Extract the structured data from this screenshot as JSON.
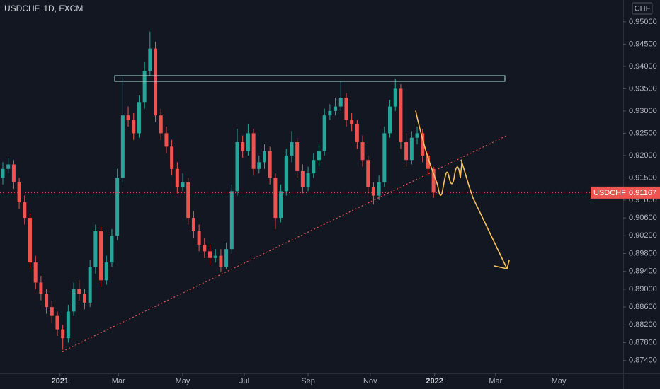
{
  "chart_data": {
    "type": "candlestick",
    "title": "USDCHF, 1D, FXCM",
    "currency": "CHF",
    "symbol_label": "USDCHF",
    "up_color": "#26a69a",
    "down_color": "#ef5350",
    "grid": false,
    "ylim": [
      0.8711,
      0.9549
    ],
    "yticks": [
      {
        "value": 0.95,
        "label": "0.95000"
      },
      {
        "value": 0.945,
        "label": "0.94500"
      },
      {
        "value": 0.94,
        "label": "0.94000"
      },
      {
        "value": 0.935,
        "label": "0.93500"
      },
      {
        "value": 0.93,
        "label": "0.93000"
      },
      {
        "value": 0.925,
        "label": "0.92500"
      },
      {
        "value": 0.92,
        "label": "0.92000"
      },
      {
        "value": 0.915,
        "label": "0.91500"
      },
      {
        "value": 0.91,
        "label": "0.91000"
      },
      {
        "value": 0.906,
        "label": "0.90600"
      },
      {
        "value": 0.902,
        "label": "0.90200"
      },
      {
        "value": 0.898,
        "label": "0.89800"
      },
      {
        "value": 0.894,
        "label": "0.89400"
      },
      {
        "value": 0.89,
        "label": "0.89000"
      },
      {
        "value": 0.886,
        "label": "0.88600"
      },
      {
        "value": 0.882,
        "label": "0.88200"
      },
      {
        "value": 0.878,
        "label": "0.87800"
      },
      {
        "value": 0.874,
        "label": "0.87400"
      }
    ],
    "xlim": [
      -0.52,
      113.8
    ],
    "xticks": [
      {
        "value": 10.5,
        "label": "2021"
      },
      {
        "value": 21.2,
        "label": "Mar"
      },
      {
        "value": 33.0,
        "label": "May"
      },
      {
        "value": 44.3,
        "label": "Jul"
      },
      {
        "value": 56.0,
        "label": "Sep"
      },
      {
        "value": 67.4,
        "label": "Nov"
      },
      {
        "value": 79.2,
        "label": "2022"
      },
      {
        "value": 90.4,
        "label": "Mar"
      },
      {
        "value": 102.0,
        "label": "May"
      }
    ],
    "open": [
      0.915,
      0.917,
      0.918,
      0.914,
      0.9095,
      0.906,
      0.896,
      0.8915,
      0.889,
      0.886,
      0.884,
      0.881,
      0.879,
      0.885,
      0.89,
      0.889,
      0.887,
      0.895,
      0.903,
      0.892,
      0.896,
      0.902,
      0.915,
      0.929,
      0.928,
      0.925,
      0.932,
      0.939,
      0.944,
      0.929,
      0.925,
      0.922,
      0.917,
      0.913,
      0.914,
      0.906,
      0.903,
      0.9,
      0.8985,
      0.897,
      0.8975,
      0.895,
      0.899,
      0.912,
      0.923,
      0.921,
      0.925,
      0.917,
      0.9185,
      0.921,
      0.915,
      0.906,
      0.912,
      0.92,
      0.923,
      0.9165,
      0.913,
      0.916,
      0.919,
      0.921,
      0.929,
      0.93,
      0.931,
      0.933,
      0.928,
      0.927,
      0.923,
      0.919,
      0.913,
      0.911,
      0.914,
      0.925,
      0.931,
      0.935,
      0.923,
      0.919,
      0.924,
      0.925,
      0.92,
      0.917
    ],
    "high": [
      0.9185,
      0.9195,
      0.919,
      0.915,
      0.911,
      0.907,
      0.8975,
      0.893,
      0.89,
      0.8875,
      0.885,
      0.882,
      0.8865,
      0.8915,
      0.892,
      0.89,
      0.8965,
      0.9045,
      0.904,
      0.8975,
      0.9035,
      0.917,
      0.9375,
      0.931,
      0.9295,
      0.9335,
      0.941,
      0.9478,
      0.9455,
      0.9305,
      0.9265,
      0.9235,
      0.9185,
      0.916,
      0.915,
      0.9075,
      0.9045,
      0.9015,
      0.9,
      0.899,
      0.899,
      0.9005,
      0.9135,
      0.926,
      0.9245,
      0.927,
      0.926,
      0.92,
      0.9225,
      0.922,
      0.916,
      0.9135,
      0.9215,
      0.9255,
      0.924,
      0.918,
      0.9175,
      0.9205,
      0.9225,
      0.9305,
      0.9315,
      0.933,
      0.9367,
      0.934,
      0.9295,
      0.928,
      0.9245,
      0.92,
      0.914,
      0.9155,
      0.9265,
      0.9325,
      0.9372,
      0.936,
      0.925,
      0.9255,
      0.9265,
      0.926,
      0.921,
      0.9175
    ],
    "low": [
      0.9135,
      0.916,
      0.9125,
      0.908,
      0.9045,
      0.8945,
      0.89,
      0.8875,
      0.8845,
      0.8825,
      0.8795,
      0.8764,
      0.878,
      0.884,
      0.8875,
      0.8855,
      0.886,
      0.8935,
      0.8905,
      0.891,
      0.895,
      0.901,
      0.914,
      0.9265,
      0.9235,
      0.924,
      0.9305,
      0.938,
      0.9275,
      0.9235,
      0.9205,
      0.9155,
      0.9115,
      0.912,
      0.9045,
      0.9015,
      0.8985,
      0.897,
      0.8955,
      0.896,
      0.8938,
      0.8945,
      0.898,
      0.911,
      0.9195,
      0.92,
      0.9155,
      0.916,
      0.917,
      0.9135,
      0.9035,
      0.905,
      0.911,
      0.9185,
      0.915,
      0.9115,
      0.912,
      0.915,
      0.9175,
      0.92,
      0.928,
      0.929,
      0.93,
      0.9265,
      0.9255,
      0.9215,
      0.9175,
      0.9115,
      0.909,
      0.91,
      0.913,
      0.924,
      0.93,
      0.9215,
      0.9175,
      0.918,
      0.9225,
      0.9185,
      0.9155,
      0.9105
    ],
    "close": [
      0.917,
      0.918,
      0.914,
      0.9095,
      0.906,
      0.896,
      0.8915,
      0.889,
      0.886,
      0.884,
      0.881,
      0.879,
      0.885,
      0.89,
      0.889,
      0.887,
      0.895,
      0.903,
      0.892,
      0.896,
      0.902,
      0.915,
      0.929,
      0.928,
      0.925,
      0.932,
      0.939,
      0.944,
      0.929,
      0.925,
      0.922,
      0.917,
      0.913,
      0.914,
      0.906,
      0.903,
      0.9,
      0.8985,
      0.897,
      0.8975,
      0.895,
      0.899,
      0.912,
      0.923,
      0.921,
      0.925,
      0.917,
      0.9185,
      0.921,
      0.915,
      0.906,
      0.912,
      0.92,
      0.923,
      0.9165,
      0.913,
      0.916,
      0.919,
      0.921,
      0.929,
      0.93,
      0.931,
      0.933,
      0.928,
      0.927,
      0.923,
      0.919,
      0.913,
      0.911,
      0.914,
      0.925,
      0.931,
      0.935,
      0.923,
      0.919,
      0.924,
      0.925,
      0.92,
      0.917,
      0.91167
    ]
  }
}
